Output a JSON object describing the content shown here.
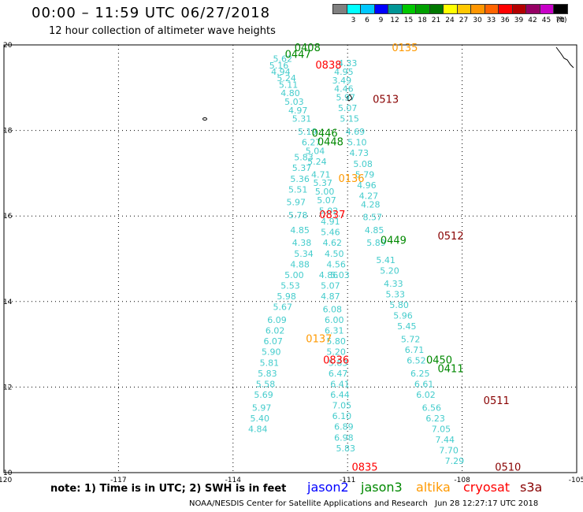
{
  "header": {
    "title": "00:00 – 11:59 UTC 06/27/2018",
    "subtitle": "12 hour collection of altimeter wave heights"
  },
  "colorbar": {
    "unit": "(ft)",
    "items": [
      {
        "label": "",
        "color": "#808080"
      },
      {
        "label": "3",
        "color": "#00ffff"
      },
      {
        "label": "6",
        "color": "#00c8ff"
      },
      {
        "label": "9",
        "color": "#0000ff"
      },
      {
        "label": "12",
        "color": "#009696"
      },
      {
        "label": "15",
        "color": "#00c800"
      },
      {
        "label": "18",
        "color": "#00a000"
      },
      {
        "label": "21",
        "color": "#007800"
      },
      {
        "label": "24",
        "color": "#ffff00"
      },
      {
        "label": "27",
        "color": "#ffc800"
      },
      {
        "label": "30",
        "color": "#ff9600"
      },
      {
        "label": "33",
        "color": "#ff6400"
      },
      {
        "label": "36",
        "color": "#ff0000"
      },
      {
        "label": "39",
        "color": "#b40000"
      },
      {
        "label": "42",
        "color": "#960064"
      },
      {
        "label": "45",
        "color": "#c800c8"
      },
      {
        "label": "70",
        "color": "#000000"
      }
    ]
  },
  "map": {
    "lon_range": [
      -120,
      -105
    ],
    "lat_range": [
      10,
      20
    ],
    "x_ticks": [
      {
        "v": -120,
        "t": "-120"
      },
      {
        "v": -117,
        "t": "-117"
      },
      {
        "v": -114,
        "t": "-114"
      },
      {
        "v": -111,
        "t": "-111"
      },
      {
        "v": -108,
        "t": "-108"
      },
      {
        "v": -105,
        "t": "-105"
      }
    ],
    "y_ticks": [
      {
        "v": 20,
        "t": "20"
      },
      {
        "v": 18,
        "t": "18"
      },
      {
        "v": 16,
        "t": "16"
      },
      {
        "v": 14,
        "t": "14"
      },
      {
        "v": 12,
        "t": "12"
      },
      {
        "v": 10,
        "t": "10"
      }
    ],
    "grid": true,
    "tracks": [
      {
        "name": "track-a",
        "color": "#44cccc",
        "points": [
          {
            "lon": -112.7,
            "lat": 19.6,
            "v": "5.62"
          },
          {
            "lon": -112.8,
            "lat": 19.45,
            "v": "5.16"
          },
          {
            "lon": -112.75,
            "lat": 19.3,
            "v": "4.94"
          },
          {
            "lon": -112.6,
            "lat": 19.15,
            "v": "5.24"
          },
          {
            "lon": -112.55,
            "lat": 19.0,
            "v": "5.11"
          },
          {
            "lon": -112.5,
            "lat": 18.8,
            "v": "4.80"
          },
          {
            "lon": -112.4,
            "lat": 18.6,
            "v": "5.03"
          },
          {
            "lon": -112.3,
            "lat": 18.4,
            "v": "4.97"
          },
          {
            "lon": -112.2,
            "lat": 18.2,
            "v": "5.31"
          },
          {
            "lon": -112.05,
            "lat": 17.9,
            "v": "5.19"
          },
          {
            "lon": -111.95,
            "lat": 17.65,
            "v": "6.27"
          },
          {
            "lon": -111.85,
            "lat": 17.45,
            "v": "5.04"
          },
          {
            "lon": -111.8,
            "lat": 17.2,
            "v": "5.24"
          },
          {
            "lon": -111.7,
            "lat": 16.9,
            "v": "4.71"
          },
          {
            "lon": -111.65,
            "lat": 16.7,
            "v": "5.37"
          },
          {
            "lon": -111.6,
            "lat": 16.5,
            "v": "5.00"
          },
          {
            "lon": -111.55,
            "lat": 16.3,
            "v": "5.07"
          },
          {
            "lon": -111.5,
            "lat": 16.05,
            "v": "5.02"
          },
          {
            "lon": -111.45,
            "lat": 15.8,
            "v": "4.91"
          },
          {
            "lon": -111.45,
            "lat": 15.55,
            "v": "5.46"
          },
          {
            "lon": -111.4,
            "lat": 15.3,
            "v": "4.62"
          },
          {
            "lon": -111.35,
            "lat": 15.05,
            "v": "4.50"
          },
          {
            "lon": -111.3,
            "lat": 14.8,
            "v": "4.56"
          },
          {
            "lon": -111.2,
            "lat": 14.55,
            "v": "5.03"
          }
        ]
      },
      {
        "name": "track-b",
        "color": "#44cccc",
        "points": [
          {
            "lon": -111.0,
            "lat": 19.5,
            "v": "4.33"
          },
          {
            "lon": -111.1,
            "lat": 19.3,
            "v": "4.95"
          },
          {
            "lon": -111.15,
            "lat": 19.1,
            "v": "3.49"
          },
          {
            "lon": -111.1,
            "lat": 18.9,
            "v": "4.46"
          },
          {
            "lon": -111.05,
            "lat": 18.7,
            "v": "5.97"
          },
          {
            "lon": -111.0,
            "lat": 18.45,
            "v": "5.07"
          },
          {
            "lon": -110.95,
            "lat": 18.2,
            "v": "5.15"
          },
          {
            "lon": -110.8,
            "lat": 17.9,
            "v": "4.69"
          },
          {
            "lon": -110.75,
            "lat": 17.65,
            "v": "5.10"
          },
          {
            "lon": -110.7,
            "lat": 17.4,
            "v": "4.73"
          },
          {
            "lon": -110.6,
            "lat": 17.15,
            "v": "5.08"
          },
          {
            "lon": -110.55,
            "lat": 16.9,
            "v": "5.79"
          },
          {
            "lon": -110.5,
            "lat": 16.65,
            "v": "4.96"
          },
          {
            "lon": -110.45,
            "lat": 16.4,
            "v": "4.27"
          },
          {
            "lon": -110.4,
            "lat": 16.2,
            "v": "4.28"
          },
          {
            "lon": -110.35,
            "lat": 15.9,
            "v": "8.57"
          },
          {
            "lon": -110.3,
            "lat": 15.6,
            "v": "4.85"
          },
          {
            "lon": -110.25,
            "lat": 15.3,
            "v": "5.89"
          },
          {
            "lon": -110.0,
            "lat": 14.9,
            "v": "5.41"
          },
          {
            "lon": -109.9,
            "lat": 14.65,
            "v": "5.20"
          },
          {
            "lon": -109.8,
            "lat": 14.35,
            "v": "4.33"
          },
          {
            "lon": -109.75,
            "lat": 14.1,
            "v": "5.33"
          },
          {
            "lon": -109.65,
            "lat": 13.85,
            "v": "5.80"
          },
          {
            "lon": -109.55,
            "lat": 13.6,
            "v": "5.96"
          },
          {
            "lon": -109.45,
            "lat": 13.35,
            "v": "5.45"
          },
          {
            "lon": -109.35,
            "lat": 13.05,
            "v": "5.72"
          },
          {
            "lon": -109.25,
            "lat": 12.8,
            "v": "6.71"
          },
          {
            "lon": -109.2,
            "lat": 12.55,
            "v": "6.52"
          },
          {
            "lon": -109.1,
            "lat": 12.25,
            "v": "6.25"
          },
          {
            "lon": -109.0,
            "lat": 12.0,
            "v": "6.61"
          },
          {
            "lon": -108.95,
            "lat": 11.75,
            "v": "6.02"
          },
          {
            "lon": -108.8,
            "lat": 11.45,
            "v": "6.56"
          },
          {
            "lon": -108.7,
            "lat": 11.2,
            "v": "6.23"
          },
          {
            "lon": -108.55,
            "lat": 10.95,
            "v": "7.05"
          },
          {
            "lon": -108.45,
            "lat": 10.7,
            "v": "7.44"
          },
          {
            "lon": -108.35,
            "lat": 10.45,
            "v": "7.70"
          },
          {
            "lon": -108.2,
            "lat": 10.2,
            "v": "7.29"
          }
        ]
      },
      {
        "name": "track-c",
        "color": "#44cccc",
        "points": [
          {
            "lon": -112.15,
            "lat": 17.3,
            "v": "5.83"
          },
          {
            "lon": -112.2,
            "lat": 17.05,
            "v": "5.37"
          },
          {
            "lon": -112.25,
            "lat": 16.8,
            "v": "5.36"
          },
          {
            "lon": -112.3,
            "lat": 16.55,
            "v": "5.51"
          },
          {
            "lon": -112.35,
            "lat": 16.25,
            "v": "5.97"
          },
          {
            "lon": -112.3,
            "lat": 15.95,
            "v": "5.78"
          },
          {
            "lon": -112.25,
            "lat": 15.6,
            "v": "4.85"
          },
          {
            "lon": -112.2,
            "lat": 15.3,
            "v": "4.38"
          },
          {
            "lon": -112.15,
            "lat": 15.05,
            "v": "5.34"
          },
          {
            "lon": -112.25,
            "lat": 14.8,
            "v": "4.88"
          },
          {
            "lon": -112.4,
            "lat": 14.55,
            "v": "5.00"
          },
          {
            "lon": -112.5,
            "lat": 14.3,
            "v": "5.53"
          },
          {
            "lon": -112.6,
            "lat": 14.05,
            "v": "5.98"
          },
          {
            "lon": -112.7,
            "lat": 13.8,
            "v": "5.67"
          },
          {
            "lon": -112.85,
            "lat": 13.5,
            "v": "6.09"
          },
          {
            "lon": -112.9,
            "lat": 13.25,
            "v": "6.02"
          },
          {
            "lon": -112.95,
            "lat": 13.0,
            "v": "6.07"
          },
          {
            "lon": -113.0,
            "lat": 12.75,
            "v": "5.90"
          },
          {
            "lon": -113.05,
            "lat": 12.5,
            "v": "5.81"
          },
          {
            "lon": -113.1,
            "lat": 12.25,
            "v": "5.83"
          },
          {
            "lon": -113.15,
            "lat": 12.0,
            "v": "5.58"
          },
          {
            "lon": -113.2,
            "lat": 11.75,
            "v": "5.69"
          },
          {
            "lon": -113.25,
            "lat": 11.45,
            "v": "5.97"
          },
          {
            "lon": -113.3,
            "lat": 11.2,
            "v": "5.40"
          },
          {
            "lon": -113.35,
            "lat": 10.95,
            "v": "4.84"
          }
        ]
      },
      {
        "name": "track-d",
        "color": "#44cccc",
        "points": [
          {
            "lon": -111.5,
            "lat": 14.55,
            "v": "4.86"
          },
          {
            "lon": -111.45,
            "lat": 14.3,
            "v": "5.07"
          },
          {
            "lon": -111.45,
            "lat": 14.05,
            "v": "4.87"
          },
          {
            "lon": -111.4,
            "lat": 13.75,
            "v": "6.08"
          },
          {
            "lon": -111.35,
            "lat": 13.5,
            "v": "6.00"
          },
          {
            "lon": -111.35,
            "lat": 13.25,
            "v": "6.31"
          },
          {
            "lon": -111.3,
            "lat": 13.0,
            "v": "5.80"
          },
          {
            "lon": -111.3,
            "lat": 12.75,
            "v": "5.20"
          },
          {
            "lon": -111.25,
            "lat": 12.5,
            "v": "5.83"
          },
          {
            "lon": -111.25,
            "lat": 12.25,
            "v": "6.47"
          },
          {
            "lon": -111.2,
            "lat": 12.0,
            "v": "6.41"
          },
          {
            "lon": -111.2,
            "lat": 11.75,
            "v": "6.44"
          },
          {
            "lon": -111.15,
            "lat": 11.5,
            "v": "7.05"
          },
          {
            "lon": -111.15,
            "lat": 11.25,
            "v": "6.10"
          },
          {
            "lon": -111.1,
            "lat": 11.0,
            "v": "6.89"
          },
          {
            "lon": -111.1,
            "lat": 10.75,
            "v": "6.98"
          },
          {
            "lon": -111.05,
            "lat": 10.5,
            "v": "5.83"
          }
        ]
      }
    ],
    "pass_labels": [
      {
        "text": "0408",
        "color": "#008800",
        "lon": -112.05,
        "lat": 19.85
      },
      {
        "text": "0447",
        "color": "#008800",
        "lon": -112.3,
        "lat": 19.7
      },
      {
        "text": "0838",
        "color": "#ff0000",
        "lon": -111.5,
        "lat": 19.45
      },
      {
        "text": "0135",
        "color": "#ff9900",
        "lon": -109.5,
        "lat": 19.85
      },
      {
        "text": "0513",
        "color": "#880000",
        "lon": -110.0,
        "lat": 18.65
      },
      {
        "text": "0446",
        "color": "#008800",
        "lon": -111.6,
        "lat": 17.85
      },
      {
        "text": "0448",
        "color": "#008800",
        "lon": -111.45,
        "lat": 17.65
      },
      {
        "text": "0136",
        "color": "#ff9900",
        "lon": -110.9,
        "lat": 16.8
      },
      {
        "text": "0837",
        "color": "#ff0000",
        "lon": -111.4,
        "lat": 15.95
      },
      {
        "text": "0512",
        "color": "#880000",
        "lon": -108.3,
        "lat": 15.45
      },
      {
        "text": "0449",
        "color": "#008800",
        "lon": -109.8,
        "lat": 15.35
      },
      {
        "text": "0137",
        "color": "#ff9900",
        "lon": -111.75,
        "lat": 13.05
      },
      {
        "text": "0836",
        "color": "#ff0000",
        "lon": -111.3,
        "lat": 12.55
      },
      {
        "text": "0450",
        "color": "#008800",
        "lon": -108.6,
        "lat": 12.55
      },
      {
        "text": "0411",
        "color": "#008800",
        "lon": -108.3,
        "lat": 12.35
      },
      {
        "text": "0511",
        "color": "#880000",
        "lon": -107.1,
        "lat": 11.6
      },
      {
        "text": "0835",
        "color": "#ff0000",
        "lon": -110.55,
        "lat": 10.05
      },
      {
        "text": "0510",
        "color": "#880000",
        "lon": -106.8,
        "lat": 10.05
      }
    ]
  },
  "footer": {
    "note": "note: 1) Time is in UTC; 2) SWH is in feet",
    "legend": [
      {
        "name": "jason2",
        "color": "#0000ff"
      },
      {
        "name": "jason3",
        "color": "#008800"
      },
      {
        "name": "altika",
        "color": "#ff9900"
      },
      {
        "name": "cryosat",
        "color": "#ff0000"
      },
      {
        "name": "s3a",
        "color": "#880000"
      }
    ],
    "credit": "NOAA/NESDIS Center for Satellite Applications and Research",
    "timestamp": "Jun 28 12:27:17 UTC 2018"
  }
}
